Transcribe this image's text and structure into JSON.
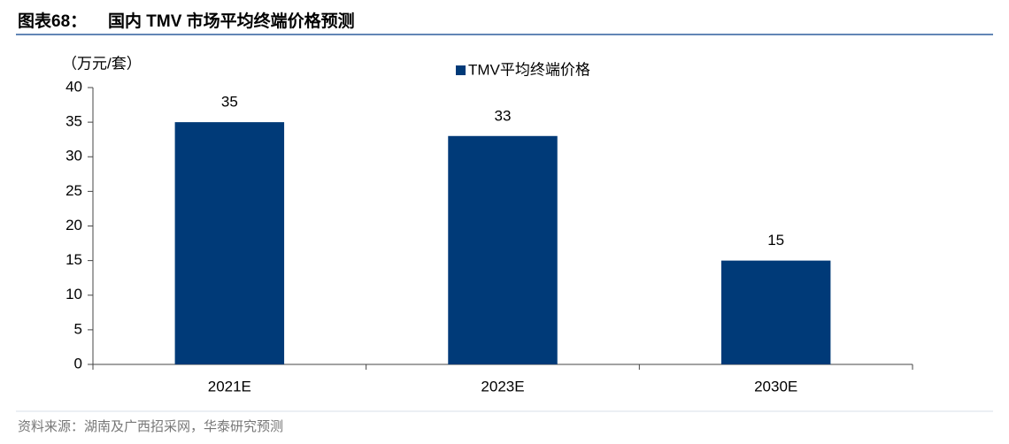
{
  "chart_data": {
    "type": "bar",
    "figure_label": "图表68：",
    "title": "国内 TMV 市场平均终端价格预测",
    "y_label": "（万元/套）",
    "categories": [
      "2021E",
      "2023E",
      "2030E"
    ],
    "series": [
      {
        "name": "TMV平均终端价格",
        "color": "#003a78",
        "values": [
          35,
          33,
          15
        ]
      }
    ],
    "ylim": [
      0,
      40
    ],
    "yticks": [
      0,
      5,
      10,
      15,
      20,
      25,
      30,
      35,
      40
    ],
    "grid": false,
    "legend": "top",
    "source": "资料来源：湖南及广西招采网，华泰研究预测"
  }
}
